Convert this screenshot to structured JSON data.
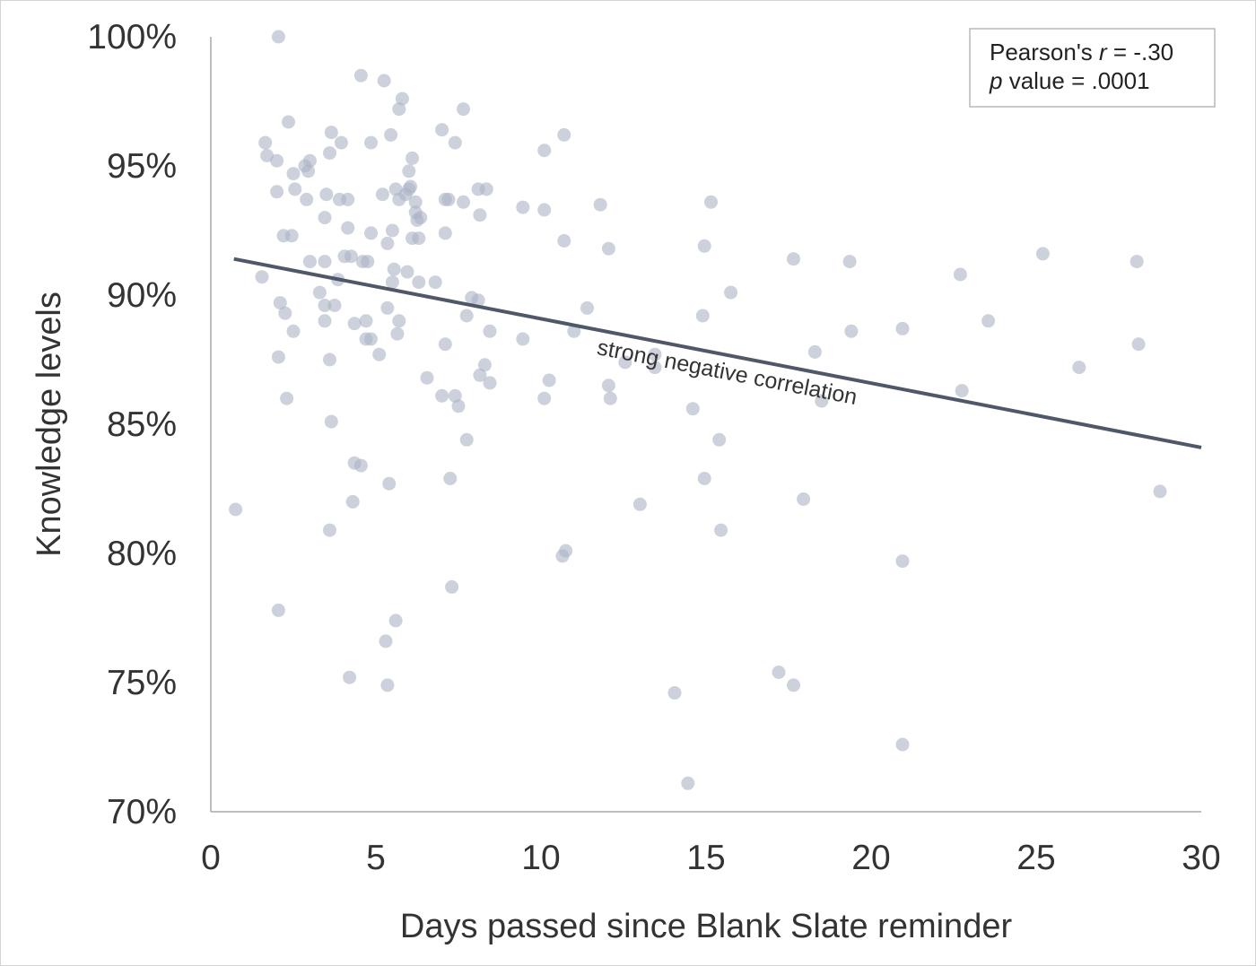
{
  "chart_data": {
    "type": "scatter",
    "title": "",
    "xlabel": "Days passed since Blank Slate reminder",
    "ylabel": "Knowledge levels",
    "xlim": [
      0,
      30
    ],
    "ylim": [
      70,
      100
    ],
    "x_ticks": [
      0,
      5,
      10,
      15,
      20,
      25,
      30
    ],
    "x_tick_labels": [
      "0",
      "5",
      "10",
      "15",
      "20",
      "25",
      "30"
    ],
    "y_ticks": [
      70,
      75,
      80,
      85,
      90,
      95,
      100
    ],
    "y_tick_labels": [
      "70%",
      "75%",
      "80%",
      "85%",
      "90%",
      "95%",
      "100%"
    ],
    "grid": false,
    "point_color": "#aab3c5",
    "trendline_color": "#4f5869",
    "trendline": {
      "x": [
        0.7,
        30
      ],
      "y": [
        91.4,
        84.1
      ],
      "label": "strong negative correlation"
    },
    "stats_box": {
      "line1_prefix": "Pearson's ",
      "line1_symbol": "r",
      "line1_suffix": " = -.30",
      "line2_symbol": "p",
      "line2_suffix": " value = .0001",
      "position": "top-right"
    },
    "points": [
      [
        2.05,
        100.0
      ],
      [
        4.55,
        98.5
      ],
      [
        5.25,
        98.3
      ],
      [
        5.8,
        97.6
      ],
      [
        5.7,
        97.2
      ],
      [
        7.65,
        97.2
      ],
      [
        2.35,
        96.7
      ],
      [
        3.65,
        96.3
      ],
      [
        5.45,
        96.2
      ],
      [
        7.0,
        96.4
      ],
      [
        10.7,
        96.2
      ],
      [
        1.65,
        95.9
      ],
      [
        3.95,
        95.9
      ],
      [
        4.85,
        95.9
      ],
      [
        7.4,
        95.9
      ],
      [
        10.1,
        95.6
      ],
      [
        1.7,
        95.4
      ],
      [
        2.0,
        95.2
      ],
      [
        3.0,
        95.2
      ],
      [
        3.6,
        95.5
      ],
      [
        6.1,
        95.3
      ],
      [
        2.5,
        94.7
      ],
      [
        2.85,
        95.0
      ],
      [
        2.95,
        94.8
      ],
      [
        6.0,
        94.8
      ],
      [
        2.0,
        94.0
      ],
      [
        2.55,
        94.1
      ],
      [
        3.5,
        93.9
      ],
      [
        2.9,
        93.7
      ],
      [
        3.9,
        93.7
      ],
      [
        4.15,
        93.7
      ],
      [
        5.2,
        93.9
      ],
      [
        5.6,
        94.1
      ],
      [
        5.7,
        93.7
      ],
      [
        5.9,
        93.9
      ],
      [
        6.0,
        94.1
      ],
      [
        6.05,
        94.2
      ],
      [
        6.2,
        93.6
      ],
      [
        7.1,
        93.7
      ],
      [
        7.2,
        93.7
      ],
      [
        7.65,
        93.6
      ],
      [
        8.1,
        94.1
      ],
      [
        8.35,
        94.1
      ],
      [
        9.45,
        93.4
      ],
      [
        10.1,
        93.3
      ],
      [
        11.8,
        93.5
      ],
      [
        15.15,
        93.6
      ],
      [
        3.45,
        93.0
      ],
      [
        6.2,
        93.2
      ],
      [
        6.25,
        92.9
      ],
      [
        6.35,
        93.0
      ],
      [
        8.15,
        93.1
      ],
      [
        4.15,
        92.6
      ],
      [
        4.85,
        92.4
      ],
      [
        5.5,
        92.5
      ],
      [
        2.2,
        92.3
      ],
      [
        2.45,
        92.3
      ],
      [
        6.1,
        92.2
      ],
      [
        6.3,
        92.2
      ],
      [
        7.1,
        92.4
      ],
      [
        5.35,
        92.0
      ],
      [
        10.7,
        92.1
      ],
      [
        12.05,
        91.8
      ],
      [
        14.95,
        91.9
      ],
      [
        4.05,
        91.5
      ],
      [
        4.25,
        91.5
      ],
      [
        3.0,
        91.3
      ],
      [
        3.45,
        91.3
      ],
      [
        4.6,
        91.3
      ],
      [
        4.75,
        91.3
      ],
      [
        17.65,
        91.4
      ],
      [
        19.35,
        91.3
      ],
      [
        25.2,
        91.6
      ],
      [
        28.05,
        91.3
      ],
      [
        5.55,
        91.0
      ],
      [
        5.95,
        90.9
      ],
      [
        22.7,
        90.8
      ],
      [
        1.55,
        90.7
      ],
      [
        3.85,
        90.6
      ],
      [
        5.5,
        90.5
      ],
      [
        6.3,
        90.5
      ],
      [
        6.8,
        90.5
      ],
      [
        3.3,
        90.1
      ],
      [
        15.75,
        90.1
      ],
      [
        2.1,
        89.7
      ],
      [
        3.75,
        89.6
      ],
      [
        7.9,
        89.9
      ],
      [
        8.1,
        89.8
      ],
      [
        3.45,
        89.6
      ],
      [
        5.35,
        89.5
      ],
      [
        11.4,
        89.5
      ],
      [
        2.25,
        89.3
      ],
      [
        7.75,
        89.2
      ],
      [
        14.9,
        89.2
      ],
      [
        3.45,
        89.0
      ],
      [
        4.35,
        88.9
      ],
      [
        4.7,
        89.0
      ],
      [
        5.7,
        89.0
      ],
      [
        23.55,
        89.0
      ],
      [
        2.5,
        88.6
      ],
      [
        8.45,
        88.6
      ],
      [
        11.0,
        88.6
      ],
      [
        19.4,
        88.6
      ],
      [
        20.95,
        88.7
      ],
      [
        4.7,
        88.3
      ],
      [
        4.85,
        88.3
      ],
      [
        5.65,
        88.5
      ],
      [
        9.45,
        88.3
      ],
      [
        7.1,
        88.1
      ],
      [
        28.1,
        88.1
      ],
      [
        18.3,
        87.8
      ],
      [
        2.05,
        87.6
      ],
      [
        3.6,
        87.5
      ],
      [
        5.1,
        87.7
      ],
      [
        13.45,
        87.7
      ],
      [
        8.3,
        87.3
      ],
      [
        12.55,
        87.4
      ],
      [
        13.45,
        87.2
      ],
      [
        26.3,
        87.2
      ],
      [
        6.55,
        86.8
      ],
      [
        8.15,
        86.9
      ],
      [
        10.25,
        86.7
      ],
      [
        8.45,
        86.6
      ],
      [
        12.05,
        86.5
      ],
      [
        22.75,
        86.3
      ],
      [
        7.0,
        86.1
      ],
      [
        7.4,
        86.1
      ],
      [
        10.1,
        86.0
      ],
      [
        12.1,
        86.0
      ],
      [
        2.3,
        86.0
      ],
      [
        18.5,
        85.9
      ],
      [
        7.5,
        85.7
      ],
      [
        14.6,
        85.6
      ],
      [
        3.65,
        85.1
      ],
      [
        7.75,
        84.4
      ],
      [
        15.4,
        84.4
      ],
      [
        4.35,
        83.5
      ],
      [
        4.55,
        83.4
      ],
      [
        7.25,
        82.9
      ],
      [
        14.95,
        82.9
      ],
      [
        5.4,
        82.7
      ],
      [
        28.75,
        82.4
      ],
      [
        4.3,
        82.0
      ],
      [
        13.0,
        81.9
      ],
      [
        17.95,
        82.1
      ],
      [
        0.75,
        81.7
      ],
      [
        3.6,
        80.9
      ],
      [
        15.45,
        80.9
      ],
      [
        10.65,
        79.9
      ],
      [
        10.75,
        80.1
      ],
      [
        20.95,
        79.7
      ],
      [
        7.3,
        78.7
      ],
      [
        2.05,
        77.8
      ],
      [
        5.6,
        77.4
      ],
      [
        5.3,
        76.6
      ],
      [
        4.2,
        75.2
      ],
      [
        17.2,
        75.4
      ],
      [
        5.35,
        74.9
      ],
      [
        17.65,
        74.9
      ],
      [
        14.05,
        74.6
      ],
      [
        20.95,
        72.6
      ],
      [
        14.45,
        71.1
      ]
    ]
  }
}
